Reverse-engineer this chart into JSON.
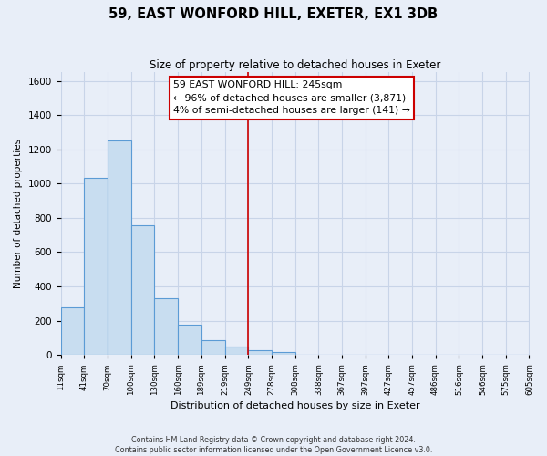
{
  "title": "59, EAST WONFORD HILL, EXETER, EX1 3DB",
  "subtitle": "Size of property relative to detached houses in Exeter",
  "xlabel": "Distribution of detached houses by size in Exeter",
  "ylabel": "Number of detached properties",
  "bar_edges": [
    11,
    41,
    70,
    100,
    130,
    160,
    189,
    219,
    249,
    278,
    308,
    338,
    367,
    397,
    427,
    457,
    486,
    516,
    546,
    575,
    605
  ],
  "bar_heights": [
    280,
    1035,
    1250,
    755,
    330,
    175,
    85,
    50,
    30,
    15,
    0,
    0,
    0,
    0,
    0,
    0,
    0,
    0,
    0,
    0
  ],
  "bar_color": "#c8ddf0",
  "bar_edge_color": "#5b9bd5",
  "vline_x": 249,
  "vline_color": "#cc0000",
  "ylim": [
    0,
    1650
  ],
  "yticks": [
    0,
    200,
    400,
    600,
    800,
    1000,
    1200,
    1400,
    1600
  ],
  "annotation_text_line1": "59 EAST WONFORD HILL: 245sqm",
  "annotation_text_line2": "← 96% of detached houses are smaller (3,871)",
  "annotation_text_line3": "4% of semi-detached houses are larger (141) →",
  "annotation_box_color": "#ffffff",
  "annotation_box_edge": "#cc0000",
  "footer_text": "Contains HM Land Registry data © Crown copyright and database right 2024.\nContains public sector information licensed under the Open Government Licence v3.0.",
  "background_color": "#e8eef8",
  "grid_color": "#c8d4e8",
  "tick_labels": [
    "11sqm",
    "41sqm",
    "70sqm",
    "100sqm",
    "130sqm",
    "160sqm",
    "189sqm",
    "219sqm",
    "249sqm",
    "278sqm",
    "308sqm",
    "338sqm",
    "367sqm",
    "397sqm",
    "427sqm",
    "457sqm",
    "486sqm",
    "516sqm",
    "546sqm",
    "575sqm",
    "605sqm"
  ]
}
